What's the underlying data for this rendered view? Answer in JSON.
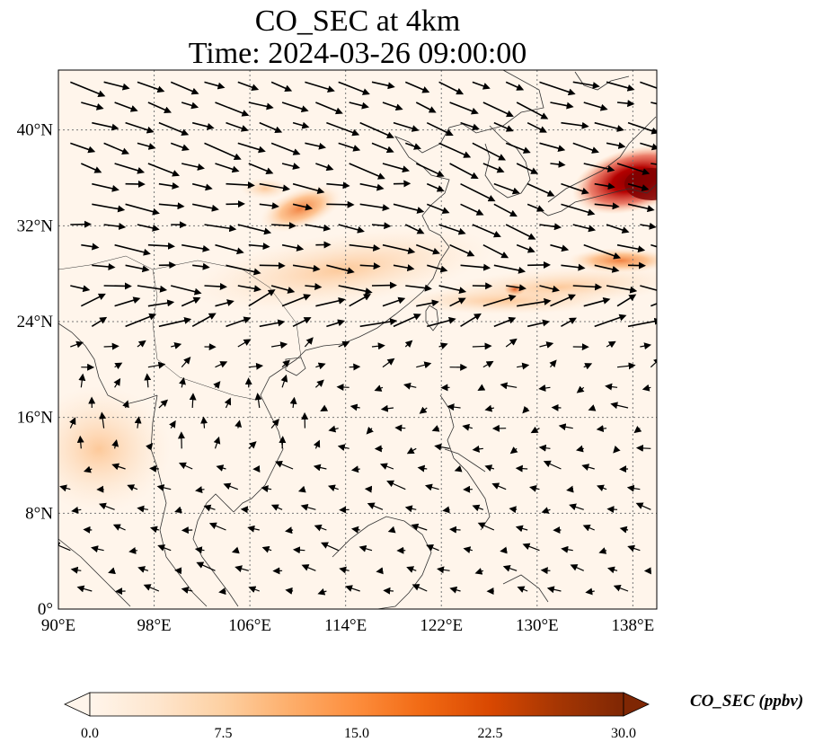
{
  "title_line1": "CO_SEC at 4km",
  "title_line2": "Time: 2024-03-26 09:00:00",
  "map": {
    "lon_range": [
      90,
      140
    ],
    "lat_range": [
      0,
      45
    ],
    "lon_ticks": [
      "90°E",
      "98°E",
      "106°E",
      "114°E",
      "122°E",
      "130°E",
      "138°E"
    ],
    "lat_ticks": [
      "0°",
      "8°N",
      "16°N",
      "24°N",
      "32°N",
      "40°N"
    ],
    "gridlines": true,
    "background_color": "#fff5eb",
    "coastline_color": "#333333",
    "vector_color": "#000000"
  },
  "colorbar": {
    "label": "CO_SEC (ppbv)",
    "ticks": [
      "0.0",
      "7.5",
      "15.0",
      "22.5",
      "30.0"
    ],
    "range": [
      0,
      30
    ],
    "extend": "both",
    "colormap": [
      "#fff5eb",
      "#fee6ce",
      "#fdd0a2",
      "#fdae6b",
      "#fd8d3c",
      "#f16913",
      "#d94801",
      "#a63603",
      "#7f2704"
    ]
  },
  "concentration_features": [
    {
      "name": "japan-plume",
      "lon": 138.5,
      "lat": 35.5,
      "value": 30
    },
    {
      "name": "east-china-plume",
      "lon": 110,
      "lat": 33.5,
      "value": 14
    },
    {
      "name": "east-china-sea-band",
      "lon": 128,
      "lat": 26.5,
      "value": 12
    },
    {
      "name": "central-china-band",
      "lon": 112,
      "lat": 30,
      "value": 5
    },
    {
      "name": "pacific-band",
      "lon": 135,
      "lat": 27,
      "value": 6
    }
  ]
}
